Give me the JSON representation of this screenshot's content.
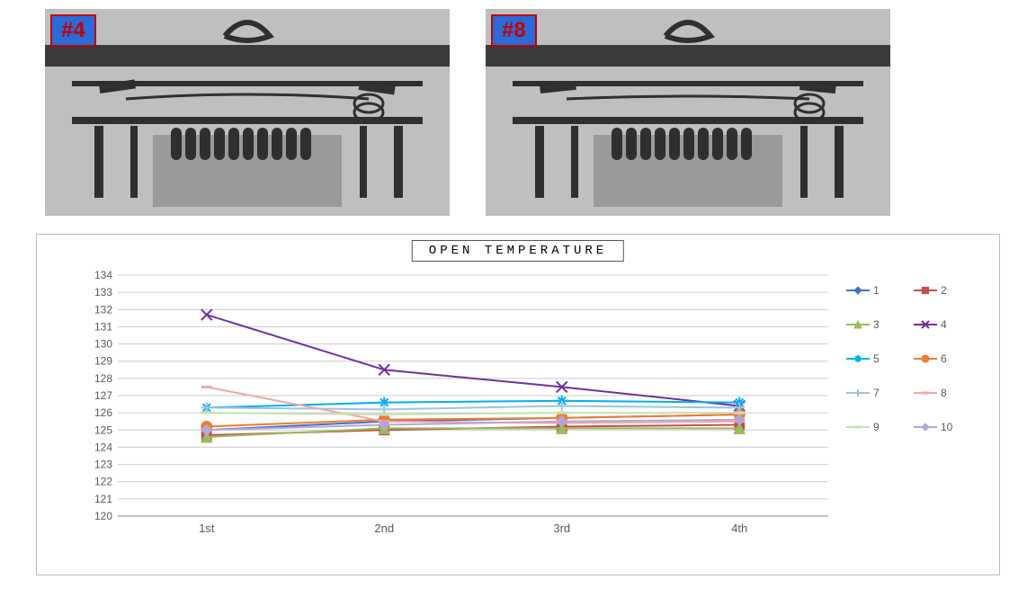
{
  "images": {
    "left_label": "#4",
    "right_label": "#8",
    "label_bg": "#2a6bd8",
    "label_border": "#c00000",
    "label_text_color": "#c00000"
  },
  "chart": {
    "type": "line",
    "title": "OPEN TEMPERATURE",
    "title_fontsize": 14,
    "title_letter_spacing": 4,
    "background_color": "#ffffff",
    "plot_bg": "#ffffff",
    "border_color": "#bbbbbb",
    "grid_color": "#cccccc",
    "axis_color": "#808080",
    "tick_label_color": "#595959",
    "tick_fontsize": 12,
    "categories": [
      "1st",
      "2nd",
      "3rd",
      "4th"
    ],
    "ylim": [
      120,
      134
    ],
    "ytick_step": 1,
    "line_width": 2,
    "marker_size": 6,
    "series": [
      {
        "name": "1",
        "color": "#4472c4",
        "marker": "diamond",
        "values": [
          125.0,
          125.5,
          125.7,
          125.9
        ]
      },
      {
        "name": "2",
        "color": "#c0504d",
        "marker": "square",
        "values": [
          124.7,
          125.0,
          125.2,
          125.3
        ]
      },
      {
        "name": "3",
        "color": "#9bbb59",
        "marker": "triangle",
        "values": [
          124.6,
          125.1,
          125.1,
          125.1
        ]
      },
      {
        "name": "4",
        "color": "#7030a0",
        "marker": "x",
        "values": [
          131.7,
          128.5,
          127.5,
          126.4
        ]
      },
      {
        "name": "5",
        "color": "#00b0f0",
        "marker": "star",
        "values": [
          126.3,
          126.6,
          126.7,
          126.6
        ]
      },
      {
        "name": "6",
        "color": "#ed7d31",
        "marker": "circle",
        "values": [
          125.2,
          125.6,
          125.7,
          125.9
        ]
      },
      {
        "name": "7",
        "color": "#9dc3e6",
        "marker": "plus",
        "values": [
          126.3,
          126.2,
          126.4,
          126.3
        ]
      },
      {
        "name": "8",
        "color": "#f4a6a6",
        "marker": "dash",
        "values": [
          127.5,
          125.5,
          125.4,
          125.5
        ]
      },
      {
        "name": "9",
        "color": "#c5e0b4",
        "marker": "dash",
        "values": [
          126.0,
          125.9,
          126.0,
          126.0
        ]
      },
      {
        "name": "10",
        "color": "#b4a7d6",
        "marker": "diamond",
        "values": [
          125.0,
          125.3,
          125.5,
          125.6
        ]
      }
    ],
    "legend_fontsize": 12,
    "legend_text_color": "#595959"
  }
}
